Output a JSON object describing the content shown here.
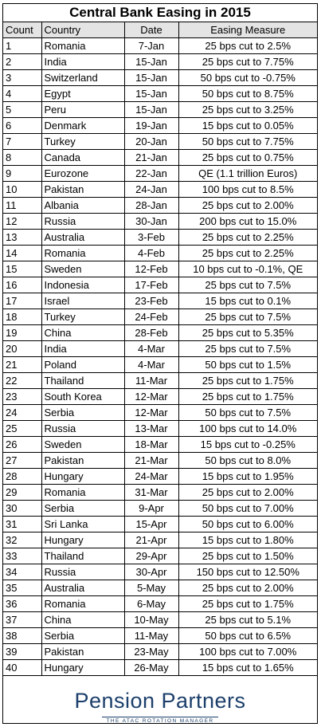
{
  "title": "Central Bank Easing in 2015",
  "headers": {
    "count": "Count",
    "country": "Country",
    "date": "Date",
    "measure": "Easing Measure"
  },
  "rows": [
    [
      "1",
      "Romania",
      "7-Jan",
      "25 bps cut to 2.5%"
    ],
    [
      "2",
      "India",
      "15-Jan",
      "25 bps cut to 7.75%"
    ],
    [
      "3",
      "Switzerland",
      "15-Jan",
      "50 bps cut to -0.75%"
    ],
    [
      "4",
      "Egypt",
      "15-Jan",
      "50 bps cut to 8.75%"
    ],
    [
      "5",
      "Peru",
      "15-Jan",
      "25 bps cut to 3.25%"
    ],
    [
      "6",
      "Denmark",
      "19-Jan",
      "15 bps cut to 0.05%"
    ],
    [
      "7",
      "Turkey",
      "20-Jan",
      "50 bps cut to 7.75%"
    ],
    [
      "8",
      "Canada",
      "21-Jan",
      "25 bps cut to 0.75%"
    ],
    [
      "9",
      "Eurozone",
      "22-Jan",
      "QE (1.1 trillion Euros)"
    ],
    [
      "10",
      "Pakistan",
      "24-Jan",
      "100 bps cut to 8.5%"
    ],
    [
      "11",
      "Albania",
      "28-Jan",
      "25 bps cut to 2.00%"
    ],
    [
      "12",
      "Russia",
      "30-Jan",
      "200 bps cut to 15.0%"
    ],
    [
      "13",
      "Australia",
      "3-Feb",
      "25 bps cut to 2.25%"
    ],
    [
      "14",
      "Romania",
      "4-Feb",
      "25 bps cut to 2.25%"
    ],
    [
      "15",
      "Sweden",
      "12-Feb",
      "10 bps cut to -0.1%, QE"
    ],
    [
      "16",
      "Indonesia",
      "17-Feb",
      "25 bps cut to 7.5%"
    ],
    [
      "17",
      "Israel",
      "23-Feb",
      "15 bps cut to 0.1%"
    ],
    [
      "18",
      "Turkey",
      "24-Feb",
      "25 bps cut to 7.5%"
    ],
    [
      "19",
      "China",
      "28-Feb",
      "25 bps cut to 5.35%"
    ],
    [
      "20",
      "India",
      "4-Mar",
      "25 bps cut to 7.5%"
    ],
    [
      "21",
      "Poland",
      "4-Mar",
      "50 bps cut to 1.5%"
    ],
    [
      "22",
      "Thailand",
      "11-Mar",
      "25 bps cut to 1.75%"
    ],
    [
      "23",
      "South Korea",
      "12-Mar",
      "25 bps cut to 1.75%"
    ],
    [
      "24",
      "Serbia",
      "12-Mar",
      "50 bps cut to 7.5%"
    ],
    [
      "25",
      "Russia",
      "13-Mar",
      "100 bps cut to 14.0%"
    ],
    [
      "26",
      "Sweden",
      "18-Mar",
      "15 bps cut to -0.25%"
    ],
    [
      "27",
      "Pakistan",
      "21-Mar",
      "50 bps cut to 8.0%"
    ],
    [
      "28",
      "Hungary",
      "24-Mar",
      "15 bps cut to 1.95%"
    ],
    [
      "29",
      "Romania",
      "31-Mar",
      "25 bps cut to 2.00%"
    ],
    [
      "30",
      "Serbia",
      "9-Apr",
      "50 bps cut to 7.00%"
    ],
    [
      "31",
      "Sri Lanka",
      "15-Apr",
      "50 bps cut to 6.00%"
    ],
    [
      "32",
      "Hungary",
      "21-Apr",
      "15 bps cut to 1.80%"
    ],
    [
      "33",
      "Thailand",
      "29-Apr",
      "25 bps cut to 1.50%"
    ],
    [
      "34",
      "Russia",
      "30-Apr",
      "150 bps cut to 12.50%"
    ],
    [
      "35",
      "Australia",
      "5-May",
      "25 bps cut to 2.00%"
    ],
    [
      "36",
      "Romania",
      "6-May",
      "25 bps cut to 1.75%"
    ],
    [
      "37",
      "China",
      "10-May",
      "25 bps cut to 5.1%"
    ],
    [
      "38",
      "Serbia",
      "11-May",
      "50 bps cut to 6.5%"
    ],
    [
      "39",
      "Pakistan",
      "23-May",
      "100 bps cut to 7.00%"
    ],
    [
      "40",
      "Hungary",
      "26-May",
      "15 bps cut to 1.65%"
    ]
  ],
  "logo": {
    "name": "Pension Partners",
    "tagline": "THE ATAC ROTATION MANAGER"
  },
  "colors": {
    "header_bg": "#e4e4e4",
    "logo": "#1c3f6b",
    "border": "#000000"
  }
}
